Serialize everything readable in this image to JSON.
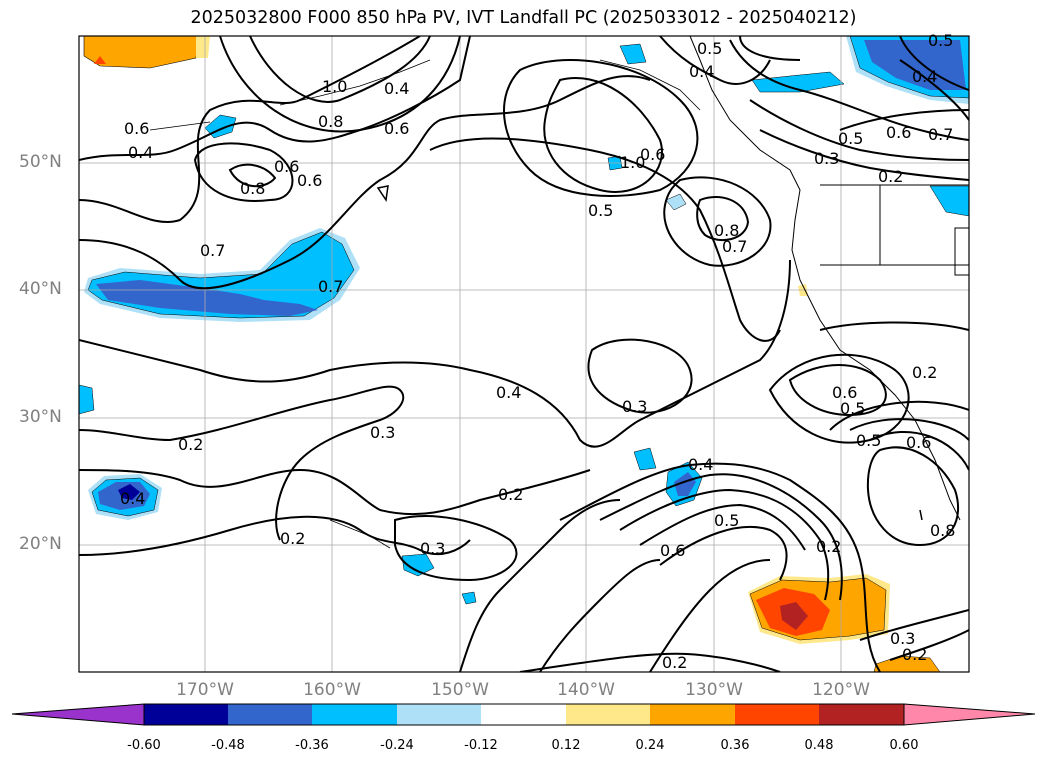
{
  "title": "2025032800 F000 850 hPa PV, IVT Landfall PC (2025033012 - 2025040212)",
  "map": {
    "lat_labels": [
      "50°N",
      "40°N",
      "30°N",
      "20°N"
    ],
    "lon_labels": [
      "170°W",
      "160°W",
      "150°W",
      "140°W",
      "130°W",
      "120°W"
    ],
    "gridlines": true,
    "contour_color": "#000000",
    "contour_labels": [
      "0.5",
      "0.4",
      "0.5",
      "0.4",
      "1.0",
      "0.4",
      "0.8",
      "0.6",
      "0.6",
      "0.4",
      "0.8",
      "0.6",
      "0.6",
      "0.6",
      "1.0",
      "0.5",
      "0.8",
      "0.7",
      "0.7",
      "0.7",
      "0.5",
      "0.3",
      "0.2",
      "0.6",
      "0.7",
      "0.4",
      "0.3",
      "0.3",
      "0.2",
      "0.2",
      "0.3",
      "0.2",
      "0.4",
      "0.6",
      "0.5",
      "0.6",
      "0.5",
      "0.5",
      "0.6",
      "0.2",
      "0.8",
      "0.2",
      "0.3",
      "0.2",
      "0.2",
      "0.4"
    ]
  },
  "colorbar": {
    "ticks": [
      "-0.60",
      "-0.48",
      "-0.36",
      "-0.24",
      "-0.12",
      "0.12",
      "0.24",
      "0.36",
      "0.48",
      "0.60"
    ],
    "colors": [
      "#9933cc",
      "#000099",
      "#3366cc",
      "#00bfff",
      "#aee0f7",
      "#ffffff",
      "#ffe88a",
      "#ffa500",
      "#ff4500",
      "#b22222",
      "#ff88aa"
    ]
  }
}
